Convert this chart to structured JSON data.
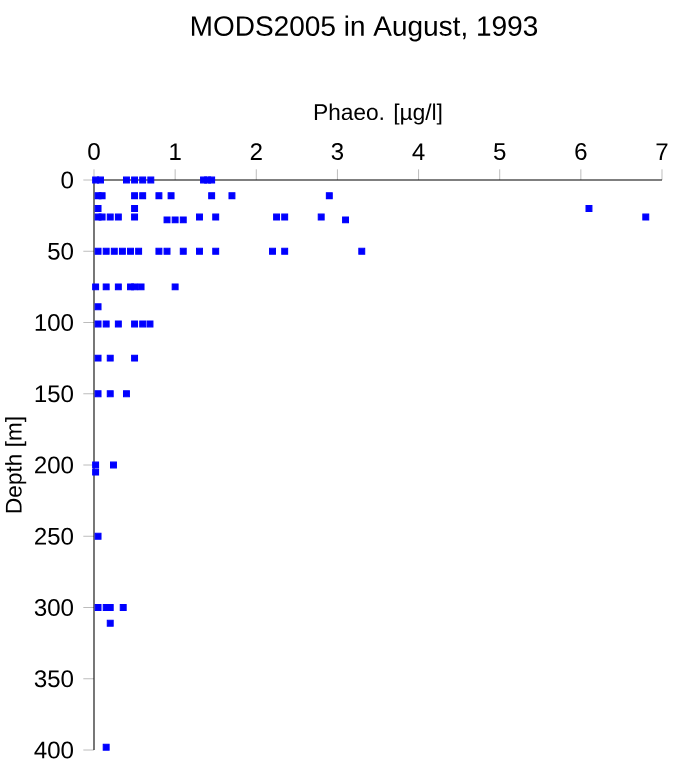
{
  "chart_data": {
    "type": "scatter",
    "title": "MODS2005 in August, 1993",
    "xlabel": "Phaeo. [µg/l]",
    "ylabel": "Depth [m]",
    "xlim": [
      0,
      7
    ],
    "xticks": [
      0,
      1,
      2,
      3,
      4,
      5,
      6,
      7
    ],
    "ylim": [
      400,
      0
    ],
    "yticks": [
      0,
      50,
      100,
      150,
      200,
      250,
      300,
      350,
      400
    ],
    "grid": false,
    "marker": "square",
    "series": [
      {
        "color": "#0000ff",
        "x": [
          0.02,
          0.08,
          0.4,
          0.5,
          0.6,
          0.7,
          1.35,
          1.4,
          1.45,
          0.05,
          0.1,
          0.5,
          0.6,
          0.8,
          0.95,
          1.45,
          1.7,
          2.9,
          0.05,
          0.5,
          6.1,
          0.05,
          0.1,
          0.2,
          0.3,
          0.5,
          0.9,
          1.0,
          1.1,
          1.3,
          1.5,
          2.25,
          2.35,
          2.8,
          3.1,
          6.8,
          0.05,
          0.15,
          0.25,
          0.35,
          0.45,
          0.55,
          0.8,
          0.9,
          1.1,
          1.3,
          1.5,
          2.2,
          2.35,
          3.3,
          0.02,
          0.15,
          0.3,
          0.45,
          0.5,
          0.58,
          1.0,
          0.05,
          0.05,
          0.15,
          0.3,
          0.5,
          0.6,
          0.69,
          0.05,
          0.2,
          0.5,
          0.05,
          0.2,
          0.4,
          0.02,
          0.24,
          0.02,
          0.05,
          0.05,
          0.15,
          0.2,
          0.36,
          0.2,
          0.15
        ],
        "values": [
          0,
          0,
          0,
          0,
          0,
          0,
          0,
          0,
          0,
          11,
          11,
          11,
          11,
          11,
          11,
          11,
          11,
          11,
          20,
          20,
          20,
          26,
          26,
          26,
          26,
          26,
          28,
          28,
          28,
          26,
          26,
          26,
          26,
          26,
          28,
          26,
          50,
          50,
          50,
          50,
          50,
          50,
          50,
          50,
          50,
          50,
          50,
          50,
          50,
          50,
          75,
          75,
          75,
          75,
          75,
          75,
          75,
          89,
          101,
          101,
          101,
          101,
          101,
          101,
          125,
          125,
          125,
          150,
          150,
          150,
          200,
          200,
          205,
          250,
          300,
          300,
          300,
          300,
          311,
          398
        ]
      }
    ]
  }
}
